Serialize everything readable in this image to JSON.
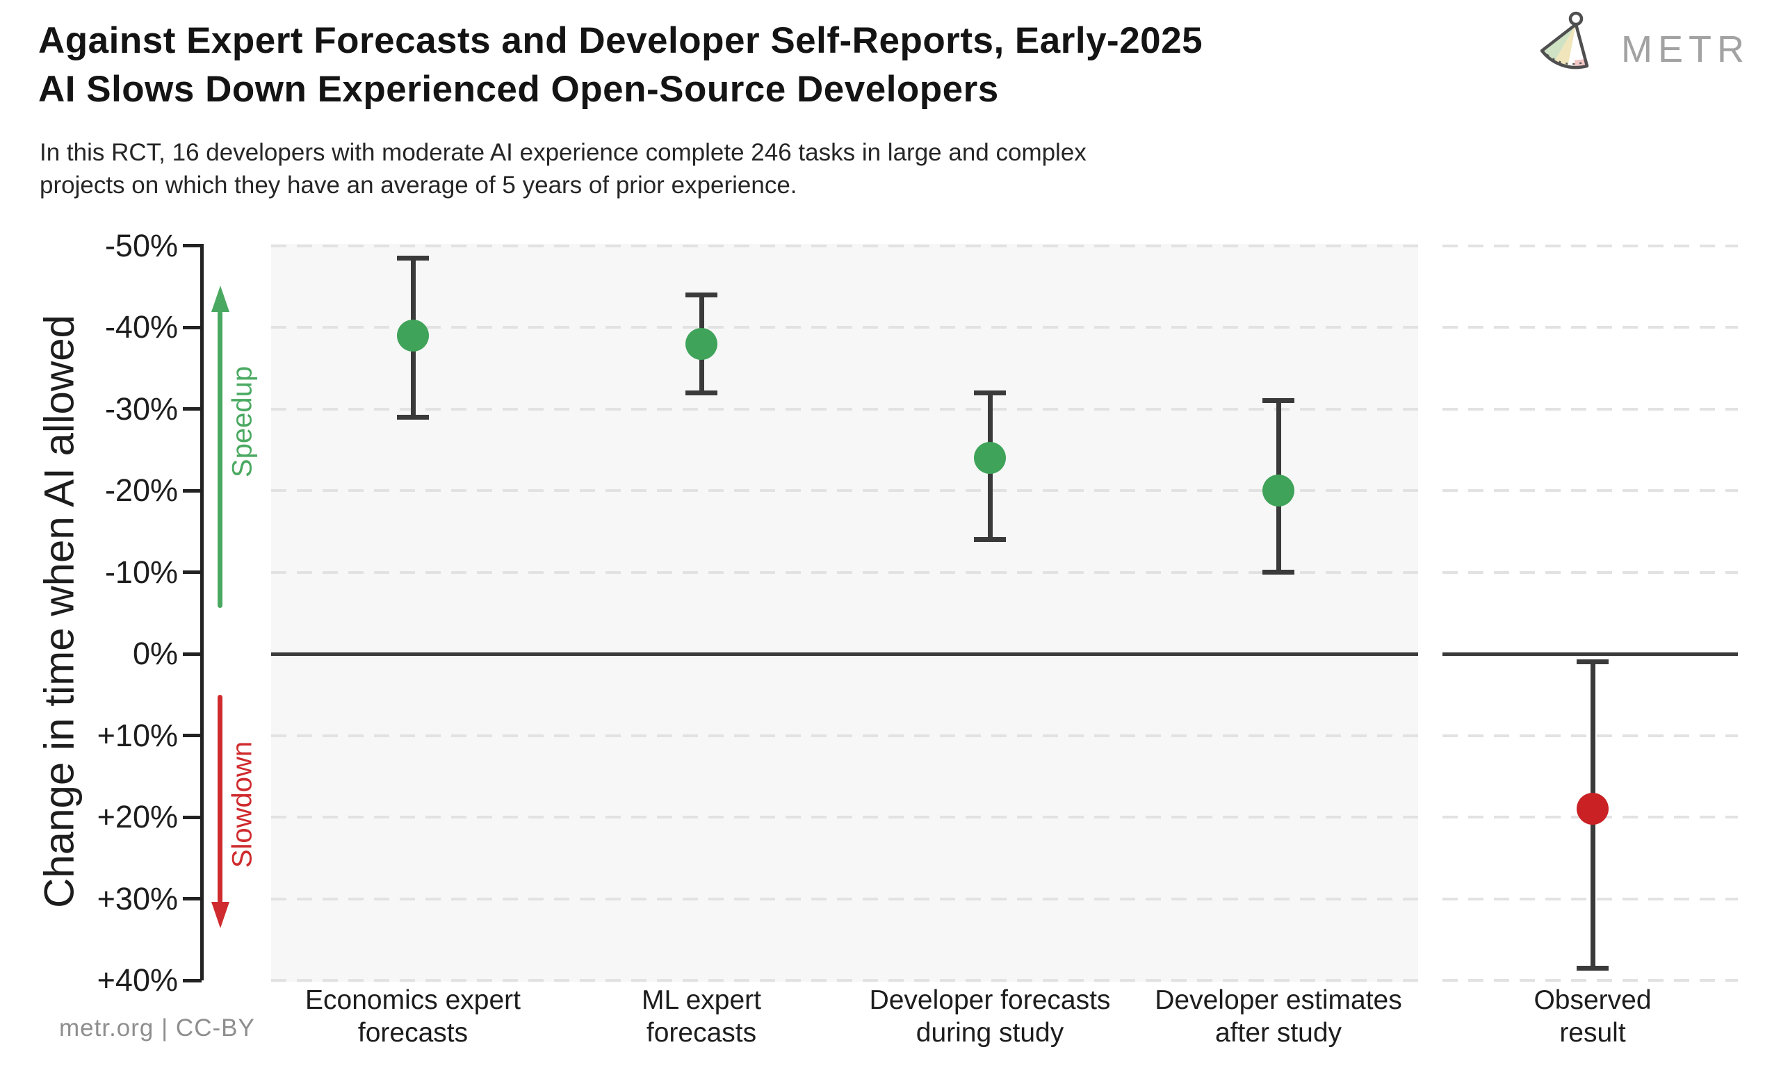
{
  "header": {
    "title": "Against Expert Forecasts and Developer Self-Reports, Early-2025\nAI Slows Down Experienced Open-Source Developers",
    "subtitle": "In this RCT, 16 developers with moderate AI experience complete 246 tasks in large and complex\nprojects on which they have an average of 5 years of prior experience."
  },
  "logo": {
    "text": "METR",
    "icon": "metr-pendulum-logo",
    "text_color": "#a2a2a2"
  },
  "y_axis": {
    "title": "Change in time when AI allowed",
    "unit": "%",
    "ticks": [
      {
        "label": "-50%",
        "value": -50
      },
      {
        "label": "-40%",
        "value": -40
      },
      {
        "label": "-30%",
        "value": -30
      },
      {
        "label": "-20%",
        "value": -20
      },
      {
        "label": "-10%",
        "value": -10
      },
      {
        "label": "0%",
        "value": 0
      },
      {
        "label": "+10%",
        "value": 10
      },
      {
        "label": "+20%",
        "value": 20
      },
      {
        "label": "+30%",
        "value": 30
      },
      {
        "label": "+40%",
        "value": 40
      }
    ],
    "annotations": {
      "speedup": {
        "label": "Speedup",
        "color": "#4aa961"
      },
      "slowdown": {
        "label": "Slowdown",
        "color": "#cf2b2e"
      }
    }
  },
  "chart_data": {
    "type": "scatter",
    "subtype": "point-estimates-with-error-bars",
    "ylabel": "Change in time when AI allowed",
    "ylim": [
      -50,
      40
    ],
    "unit": "percent change in completion time",
    "zero_line": 0,
    "grid": "dashed horizontal every 10%",
    "errorbar_color": "#3a3a3a",
    "categories": [
      "Economics expert\nforecasts",
      "ML expert\nforecasts",
      "Developer forecasts\nduring study",
      "Developer estimates\nafter study",
      "Observed\nresult"
    ],
    "points": [
      {
        "category": "Economics expert\nforecasts",
        "panel": "forecasts",
        "mean": -39,
        "ci_low": -48.5,
        "ci_high": -29,
        "color": "#3fa35a"
      },
      {
        "category": "ML expert\nforecasts",
        "panel": "forecasts",
        "mean": -38,
        "ci_low": -44,
        "ci_high": -32,
        "color": "#3fa35a"
      },
      {
        "category": "Developer forecasts\nduring study",
        "panel": "forecasts",
        "mean": -24,
        "ci_low": -32,
        "ci_high": -14,
        "color": "#3fa35a"
      },
      {
        "category": "Developer estimates\nafter study",
        "panel": "forecasts",
        "mean": -20,
        "ci_low": -31,
        "ci_high": -10,
        "color": "#3fa35a"
      },
      {
        "category": "Observed\nresult",
        "panel": "observed",
        "mean": 19,
        "ci_low": 1,
        "ci_high": 38.5,
        "color": "#c92124"
      }
    ]
  },
  "footer": {
    "credit": "metr.org  |  CC-BY"
  }
}
